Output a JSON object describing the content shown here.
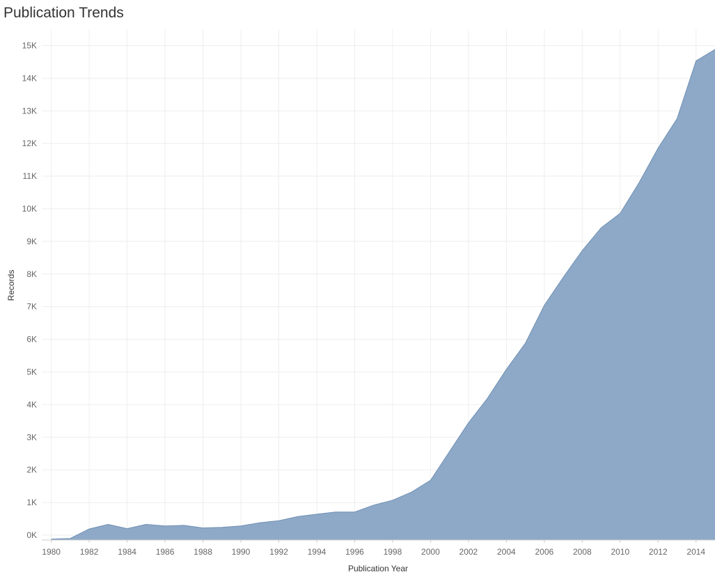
{
  "title": "Publication Trends",
  "chart_data": {
    "type": "area",
    "title": "Publication Trends",
    "xlabel": "Publication Year",
    "ylabel": "Records",
    "xlim": [
      1979.5,
      2015
    ],
    "ylim": [
      -150,
      15500
    ],
    "grid": true,
    "legend": "none",
    "x": [
      1980,
      1981,
      1982,
      1983,
      1984,
      1985,
      1986,
      1987,
      1988,
      1989,
      1990,
      1991,
      1992,
      1993,
      1994,
      1995,
      1996,
      1997,
      1998,
      1999,
      2000,
      2001,
      2002,
      2003,
      2004,
      2005,
      2006,
      2007,
      2008,
      2009,
      2010,
      2011,
      2012,
      2013,
      2014,
      2015
    ],
    "series": [
      {
        "values": [
          -120,
          -100,
          190,
          330,
          200,
          330,
          280,
          300,
          220,
          240,
          280,
          380,
          440,
          570,
          640,
          710,
          710,
          920,
          1070,
          1320,
          1680,
          2560,
          3440,
          4190,
          5080,
          5880,
          7040,
          7900,
          8720,
          9420,
          9860,
          10800,
          11860,
          12760,
          14530,
          14880
        ]
      }
    ],
    "x_ticks": [
      "1980",
      "1982",
      "1984",
      "1986",
      "1988",
      "1990",
      "1992",
      "1994",
      "1996",
      "1998",
      "2000",
      "2002",
      "2004",
      "2006",
      "2008",
      "2010",
      "2012",
      "2014"
    ],
    "y_ticks": [
      "0K",
      "1K",
      "2K",
      "3K",
      "4K",
      "5K",
      "6K",
      "7K",
      "8K",
      "9K",
      "10K",
      "11K",
      "12K",
      "13K",
      "14K",
      "15K"
    ],
    "colors": {
      "area": "#8EA9C8",
      "line": "#6F8FB3",
      "grid": "#EEEEEE",
      "axis": "#CCCCCC"
    }
  }
}
